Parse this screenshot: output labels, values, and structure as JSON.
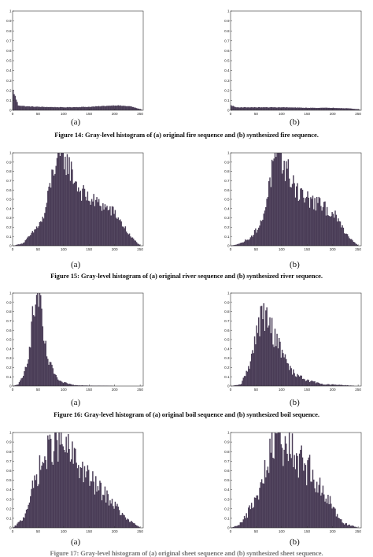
{
  "figures": [
    {
      "id": "fig14",
      "caption": "Figure 14: Gray-level histogram of (a) original fire sequence and (b) synthesized fire sequence.",
      "panels": [
        {
          "label": "(a)",
          "profile": "fire"
        },
        {
          "label": "(b)",
          "profile": "fire"
        }
      ]
    },
    {
      "id": "fig15",
      "caption": "Figure 15: Gray-level histogram of (a) original river sequence and (b) synthesized river sequence.",
      "panels": [
        {
          "label": "(a)",
          "profile": "river"
        },
        {
          "label": "(b)",
          "profile": "river"
        }
      ]
    },
    {
      "id": "fig16",
      "caption": "Figure 16: Gray-level histogram of (a) original boil sequence and (b) synthesized boil sequence.",
      "panels": [
        {
          "label": "(a)",
          "profile": "boil"
        },
        {
          "label": "(b)",
          "profile": "boil"
        }
      ]
    },
    {
      "id": "fig17",
      "caption": "Figure 17: Gray-level histogram of (a) original sheet sequence and (b) synthesized sheet sequence.",
      "panels": [
        {
          "label": "(a)",
          "profile": "sheet_a"
        },
        {
          "label": "(b)",
          "profile": "sheet_b"
        }
      ]
    }
  ],
  "axes": {
    "x_ticks": [
      0,
      50,
      100,
      150,
      200,
      250
    ],
    "y_ticks": [
      0,
      0.1,
      0.2,
      0.3,
      0.4,
      0.5,
      0.6,
      0.7,
      0.8,
      0.9,
      1
    ],
    "xlim": [
      0,
      256
    ],
    "ylim": [
      0,
      1
    ]
  },
  "colors": {
    "bar_fill": "#4a3d57",
    "axis": "#333333",
    "text": "#111111"
  },
  "chart_data": [
    {
      "type": "bar",
      "panel": "14a",
      "x": [
        0,
        10,
        25,
        50,
        100,
        150,
        200,
        230,
        250,
        255
      ],
      "values": [
        0.2,
        0.05,
        0.04,
        0.035,
        0.03,
        0.035,
        0.05,
        0.04,
        0.01,
        0.0
      ],
      "xlim": [
        0,
        256
      ],
      "ylim": [
        0,
        1
      ],
      "xticks": [
        0,
        50,
        100,
        150,
        200,
        250
      ]
    },
    {
      "type": "bar",
      "panel": "14b",
      "x": [
        0,
        10,
        25,
        50,
        100,
        150,
        200,
        230,
        250,
        255
      ],
      "values": [
        0.05,
        0.03,
        0.03,
        0.03,
        0.03,
        0.025,
        0.025,
        0.02,
        0.01,
        0.0
      ],
      "xlim": [
        0,
        256
      ],
      "ylim": [
        0,
        1
      ],
      "xticks": [
        0,
        50,
        100,
        150,
        200,
        250
      ]
    },
    {
      "type": "bar",
      "panel": "15a",
      "x": [
        0,
        20,
        40,
        60,
        80,
        95,
        110,
        130,
        150,
        170,
        200,
        230,
        250
      ],
      "values": [
        0.0,
        0.03,
        0.15,
        0.3,
        0.85,
        1.0,
        0.85,
        0.6,
        0.5,
        0.45,
        0.35,
        0.1,
        0.0
      ],
      "xlim": [
        0,
        256
      ],
      "ylim": [
        0,
        1
      ],
      "xticks": [
        0,
        50,
        100,
        150,
        200,
        250
      ]
    },
    {
      "type": "bar",
      "panel": "15b",
      "x": [
        0,
        20,
        40,
        60,
        80,
        95,
        110,
        130,
        150,
        170,
        200,
        230,
        250
      ],
      "values": [
        0.0,
        0.03,
        0.1,
        0.25,
        0.8,
        1.0,
        0.8,
        0.6,
        0.5,
        0.45,
        0.35,
        0.1,
        0.0
      ],
      "xlim": [
        0,
        256
      ],
      "ylim": [
        0,
        1
      ],
      "xticks": [
        0,
        50,
        100,
        150,
        200,
        250
      ]
    },
    {
      "type": "bar",
      "panel": "16a",
      "x": [
        0,
        10,
        20,
        30,
        40,
        50,
        60,
        70,
        90,
        120,
        150,
        250
      ],
      "values": [
        0.0,
        0.02,
        0.1,
        0.35,
        0.8,
        1.0,
        0.5,
        0.25,
        0.05,
        0.01,
        0.005,
        0.0
      ],
      "xlim": [
        0,
        256
      ],
      "ylim": [
        0,
        1
      ],
      "xticks": [
        0,
        50,
        100,
        150,
        200,
        250
      ]
    },
    {
      "type": "bar",
      "panel": "16b",
      "x": [
        0,
        20,
        40,
        60,
        80,
        100,
        120,
        150,
        180,
        220,
        250
      ],
      "values": [
        0.0,
        0.02,
        0.3,
        0.8,
        0.6,
        0.35,
        0.15,
        0.06,
        0.02,
        0.01,
        0.0
      ],
      "xlim": [
        0,
        256
      ],
      "ylim": [
        0,
        1
      ],
      "xticks": [
        0,
        50,
        100,
        150,
        200,
        250
      ]
    },
    {
      "type": "bar",
      "panel": "17a",
      "x": [
        0,
        20,
        50,
        80,
        100,
        130,
        160,
        190,
        220,
        250
      ],
      "values": [
        0.0,
        0.1,
        0.6,
        0.9,
        0.85,
        0.65,
        0.45,
        0.3,
        0.1,
        0.0
      ],
      "xlim": [
        0,
        256
      ],
      "ylim": [
        0,
        1
      ],
      "xticks": [
        0,
        50,
        100,
        150,
        200,
        250
      ]
    },
    {
      "type": "bar",
      "panel": "17b",
      "x": [
        0,
        20,
        50,
        80,
        100,
        130,
        160,
        190,
        220,
        250
      ],
      "values": [
        0.0,
        0.05,
        0.3,
        0.8,
        0.9,
        0.75,
        0.55,
        0.3,
        0.05,
        0.0
      ],
      "xlim": [
        0,
        256
      ],
      "ylim": [
        0,
        1
      ],
      "xticks": [
        0,
        50,
        100,
        150,
        200,
        250
      ]
    }
  ]
}
